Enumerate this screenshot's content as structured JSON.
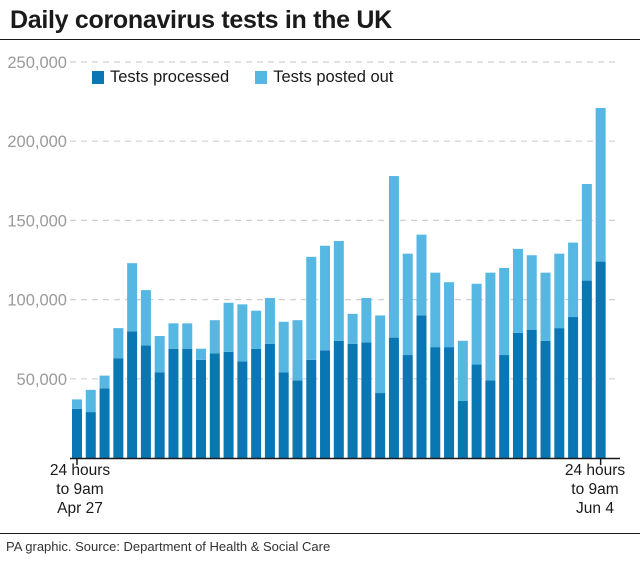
{
  "title": "Daily coronavirus tests in the UK",
  "source": "PA graphic. Source: Department of Health & Social Care",
  "colors": {
    "processed": "#0a77b5",
    "posted": "#57b7e3",
    "grid": "#cfcfcf",
    "tick_label": "#9a9a9a",
    "axis": "#1a1a1a"
  },
  "chart_data": {
    "type": "bar",
    "stacked": true,
    "title": "Daily coronavirus tests in the UK",
    "xlabel": "",
    "ylabel": "",
    "ylim": [
      0,
      250000
    ],
    "y_ticks": [
      50000,
      100000,
      150000,
      200000,
      250000
    ],
    "y_tick_labels": [
      "50,000",
      "100,000",
      "150,000",
      "200,000",
      "250,000"
    ],
    "grid": true,
    "legend_position": "top-left",
    "x_start_label": [
      "24 hours",
      "to 9am",
      "Apr 27"
    ],
    "x_end_label": [
      "24 hours",
      "to 9am",
      "Jun 4"
    ],
    "series": [
      {
        "name": "Tests processed",
        "values": [
          31000,
          29000,
          44000,
          63000,
          80000,
          71000,
          54000,
          69000,
          69000,
          62000,
          66000,
          67000,
          61000,
          69000,
          72000,
          54000,
          49000,
          62000,
          68000,
          74000,
          72000,
          73000,
          41000,
          76000,
          65000,
          90000,
          70000,
          70000,
          36000,
          59000,
          49000,
          65000,
          79000,
          81000,
          74000,
          82000,
          89000,
          112000,
          124000
        ]
      },
      {
        "name": "Tests posted out",
        "values": [
          6000,
          14000,
          8000,
          19000,
          43000,
          35000,
          23000,
          16000,
          16000,
          7000,
          21000,
          31000,
          36000,
          24000,
          29000,
          32000,
          38000,
          65000,
          66000,
          63000,
          19000,
          28000,
          49000,
          102000,
          64000,
          51000,
          47000,
          41000,
          38000,
          51000,
          68000,
          55000,
          53000,
          47000,
          43000,
          47000,
          47000,
          61000,
          97000
        ]
      }
    ]
  }
}
